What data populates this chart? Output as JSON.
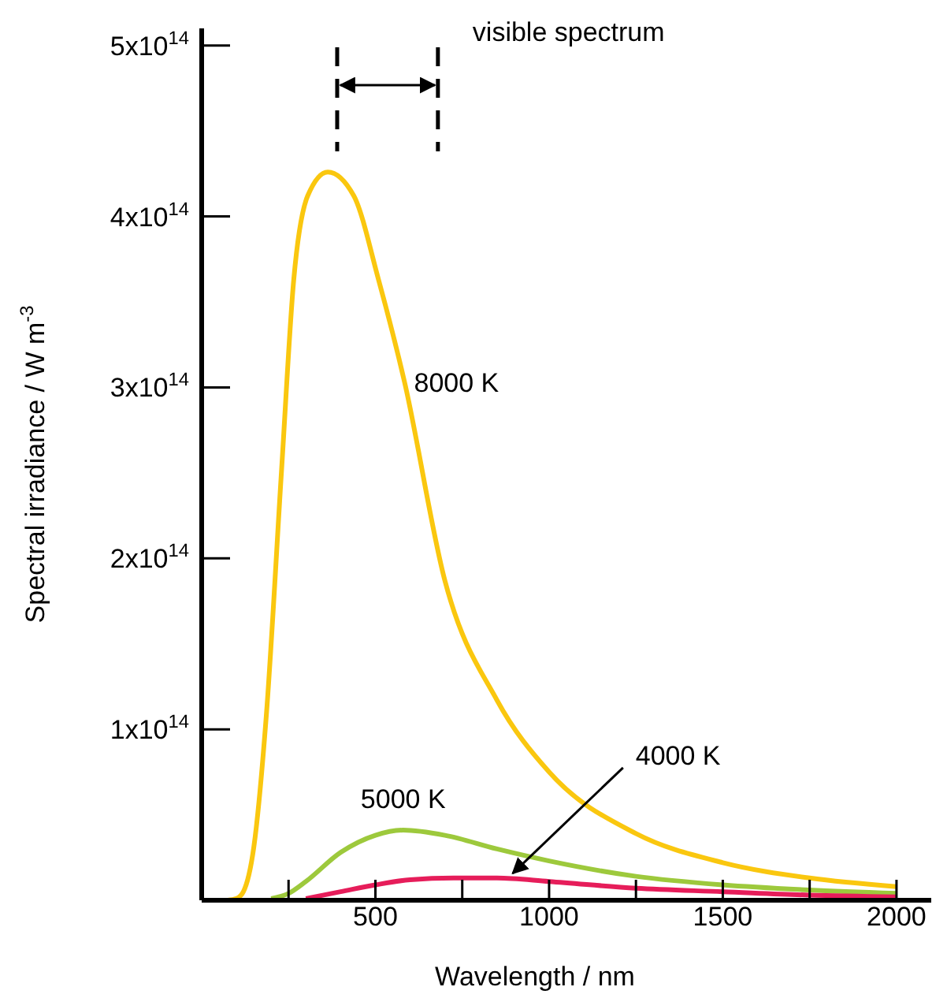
{
  "chart_data": {
    "type": "line",
    "xlabel": "Wavelength / nm",
    "ylabel": "Spectral irradiance / W m$^{-3}$",
    "xlim": [
      0,
      2100
    ],
    "ylim": [
      0,
      510000000000000.0
    ],
    "xticks": [
      {
        "value": 250,
        "label": null
      },
      500,
      {
        "value": 750,
        "label": null
      },
      1000,
      {
        "value": 1250,
        "label": null
      },
      1500,
      {
        "value": 1750,
        "label": null
      },
      2000
    ],
    "yticks": [
      {
        "value": 100000000000000.0,
        "label": "1x10$^{14}$"
      },
      {
        "value": 200000000000000.0,
        "label": "2x10$^{14}$"
      },
      {
        "value": 300000000000000.0,
        "label": "3x10$^{14}$"
      },
      {
        "value": 400000000000000.0,
        "label": "4x10$^{14}$"
      },
      {
        "value": 500000000000000.0,
        "label": "5x10$^{14}$"
      }
    ],
    "ref_lines": [
      {
        "axis": "x",
        "value": 390,
        "line_style": "dashed",
        "color": "#000000"
      },
      {
        "axis": "x",
        "value": 680,
        "line_style": "dashed",
        "color": "#000000"
      }
    ],
    "annotations": [
      "visible spectrum"
    ],
    "series": [
      {
        "name": "8000 K",
        "color": "#fac70f",
        "x": [
          75,
          100,
          120,
          150,
          186,
          230,
          265,
          305,
          363,
          438,
          509,
          584,
          700,
          850,
          1000,
          1250,
          1500,
          1750,
          2000
        ],
        "values": [
          0,
          1000000000000.0,
          5000000000000.0,
          31000000000000.0,
          108000000000000.0,
          252000000000000.0,
          363000000000000.0,
          412000000000000.0,
          426000000000000.0,
          412000000000000.0,
          363000000000000.0,
          303000000000000.0,
          187000000000000.0,
          117000000000000.0,
          75000000000000.0,
          39000000000000.0,
          22000000000000.0,
          13000000000000.0,
          8000000000000.0
        ]
      },
      {
        "name": "5000 K",
        "color": "#9dc93c",
        "x": [
          200,
          250,
          300,
          400,
          500,
          580,
          700,
          850,
          1000,
          1250,
          1500,
          1750,
          2000
        ],
        "values": [
          1000000000000.0,
          4000000000000.0,
          11000000000000.0,
          28000000000000.0,
          38000000000000.0,
          41000000000000.0,
          38000000000000.0,
          30000000000000.0,
          23000000000000.0,
          14000000000000.0,
          9000000000000.0,
          6000000000000.0,
          4000000000000.0
        ]
      },
      {
        "name": "4000 K",
        "color": "#e61d5a",
        "x": [
          300,
          400,
          500,
          600,
          725,
          850,
          1000,
          1250,
          1500,
          1750,
          2000
        ],
        "values": [
          1000000000000.0,
          5000000000000.0,
          9000000000000.0,
          12000000000000.0,
          13000000000000.0,
          13000000000000.0,
          11000000000000.0,
          7000000000000.0,
          5000000000000.0,
          3000000000000.0,
          2000000000000.0
        ]
      }
    ]
  }
}
